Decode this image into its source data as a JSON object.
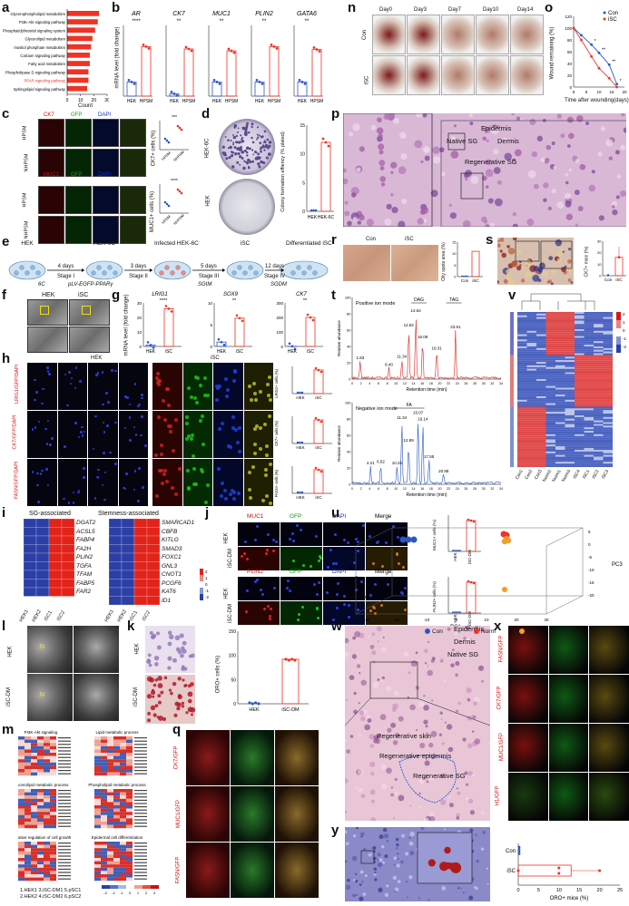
{
  "colors": {
    "red": "#ee3324",
    "blue": "#2f56c4",
    "orange": "#f39c2b",
    "bar": "#ee3324"
  },
  "panels": {
    "a": {
      "label": "a",
      "xlabel": "Count",
      "ticks": [
        "0",
        "10",
        "20",
        "30"
      ],
      "chart_data": {
        "type": "bar",
        "orientation": "horizontal",
        "categories": [
          "Glycerophospholipid metabolism",
          "PI3K-Akt signaling pathway",
          "Phosphatidylinositol signaling system",
          "Glycerolipid metabolism",
          "Inositol phosphate metabolism",
          "Calcium signaling pathway",
          "Fatty acid metabolism",
          "Phospholipase D signaling pathway",
          "PPAR signaling pathway",
          "Sphingolipid signaling pathway"
        ],
        "values": [
          24,
          23,
          21,
          19,
          18,
          17,
          17,
          16,
          16,
          15
        ],
        "xlim": [
          0,
          30
        ],
        "xlabel": "Count",
        "highlight": "PPAR signaling pathway"
      }
    },
    "b": {
      "label": "b",
      "ylabel": "mRNA level (fold change)",
      "genes": [
        "AR",
        "CK7",
        "MUC1",
        "PLIN2",
        "GATA6"
      ],
      "groups": [
        "HEK",
        "HPSM"
      ],
      "sig": [
        "****",
        "**",
        "**",
        "**",
        "**"
      ],
      "chart_data": {
        "type": "bar",
        "series": [
          {
            "name": "HEK",
            "values": [
              1,
              1,
              1,
              1,
              1
            ]
          },
          {
            "name": "HPSM",
            "values": [
              3.5,
              20,
              3.2,
              3.5,
              3.3
            ]
          }
        ]
      }
    },
    "c": {
      "label": "c",
      "rows": [
        "HPSM",
        "NHPSM",
        "HPSM",
        "NHPSM"
      ],
      "cols_top": [
        "CK7",
        "GFP",
        "DAPI"
      ],
      "cols_bottom": [
        "MUC1",
        "GFP",
        "DAPI"
      ],
      "ylabel_top": "CK7+ cells (%)",
      "ylabel_bottom": "MUC1+ cells (%)",
      "sig_top": "***",
      "sig_bottom": "****",
      "groups": [
        "HPSM",
        "NHPSM"
      ]
    },
    "d": {
      "label": "d",
      "dish_labels": [
        "HEK-6C",
        "HEK"
      ],
      "ylabel": "Colony formation effiency (% plated)",
      "groups": [
        "HEK",
        "HEK-6C"
      ],
      "ticks": [
        "0",
        "5",
        "10",
        "15"
      ],
      "chart_data": {
        "type": "bar",
        "categories": [
          "HEK",
          "HEK-6C"
        ],
        "values": [
          0,
          12
        ],
        "ylim": [
          0,
          15
        ]
      }
    },
    "e": {
      "label": "e",
      "stages": [
        "HEK",
        "HEK-6C",
        "Infected HEK-6C",
        "iSC",
        "Differentiated iSC"
      ],
      "durations": [
        "4 days",
        "3 days",
        "5 days",
        "12 days"
      ],
      "stage_names": [
        "Stage I",
        "Stage II",
        "Stage III",
        "Stage IV"
      ],
      "media": [
        "6C",
        "pLV-EGFP-PPARγ",
        "SGIM",
        "SGDM"
      ]
    },
    "f": {
      "label": "f",
      "titles": [
        "HEK",
        "iSC"
      ]
    },
    "g": {
      "label": "g",
      "genes": [
        "LRIG1",
        "SOX9",
        "CK7"
      ],
      "sig": [
        "****",
        "**",
        "**"
      ],
      "ylabel": "mRNA level (fold change)",
      "groups": [
        "HEK",
        "iSC"
      ],
      "ticks": [
        [
          "0",
          "10",
          "20",
          "30"
        ],
        [
          "0",
          "5",
          "10"
        ],
        [
          "0",
          "100",
          "200",
          "300"
        ]
      ],
      "chart_data": {
        "type": "bar",
        "series": [
          {
            "name": "HEK",
            "values": [
              1,
              1,
              1
            ]
          },
          {
            "name": "iSC",
            "values": [
              26,
              6.5,
              200
            ]
          }
        ]
      }
    },
    "h": {
      "label": "h",
      "titles": [
        "HEK",
        "iSC"
      ],
      "row_labels": [
        "LRIG1/GFP/DAPI",
        "CK7/GFP/DAPI",
        "FASN/GFP/DAPI"
      ],
      "ylabels": [
        "LRIG1+ cells (%)",
        "CK7+ cells (%)",
        "FASN+ cells (%)"
      ],
      "groups": [
        "HEK",
        "iSC"
      ]
    },
    "i": {
      "label": "i",
      "headers": [
        "SG-associated",
        "Stemness-associated"
      ],
      "genes_left": [
        "DGAT2",
        "ACSL5",
        "FABP4",
        "FA2H",
        "PLIN2",
        "TGFA",
        "TFAM",
        "FABP5",
        "FAR2"
      ],
      "genes_right": [
        "SMARCAD1",
        "CBFB",
        "KITLG",
        "SMAD3",
        "FOXC1",
        "GNL3",
        "CNOT1",
        "PCGF6",
        "KAT6",
        "ID1"
      ],
      "cols": [
        "HEK1",
        "HEK2",
        "iSC1",
        "iSC2"
      ],
      "scale": [
        "2",
        "1",
        "0",
        "-1",
        "-2"
      ]
    },
    "j": {
      "label": "j",
      "cols_top": [
        "MUC1",
        "GFP",
        "DAPI",
        "Merge"
      ],
      "cols_bottom": [
        "PLIN2",
        "GFP",
        "DAPI",
        "Merge"
      ],
      "rows": [
        "HEK",
        "iSC-DM"
      ],
      "ylabel_top": "MUC1+ cells (%)",
      "ylabel_bottom": "PLIN2+ cells (%)",
      "groups": [
        "HEK",
        "iSC-DM"
      ]
    },
    "k": {
      "label": "k",
      "rows": [
        "HEK",
        "iSC-DM"
      ],
      "ylabel": "ORO+ cells (%)",
      "groups": [
        "HEK",
        "iSC-DM"
      ],
      "ticks": [
        "0",
        "50",
        "100",
        "150"
      ],
      "chart_data": {
        "type": "scatter",
        "categories": [
          "HEK",
          "iSC-DM"
        ],
        "values": [
          2,
          92
        ],
        "ylim": [
          0,
          150
        ]
      }
    },
    "l": {
      "label": "l",
      "rows": [
        "HEK",
        "iSC-DM"
      ],
      "marks": [
        "N",
        "N"
      ]
    },
    "m": {
      "label": "m",
      "titles": [
        "PI3K-Akt signaling",
        "Lipid metabolic process",
        "Glycerolipid metabolic process",
        "Phospholipid metabolic process",
        "Negative regulation of cell growth",
        "Epidermal cell differentiation"
      ],
      "footer": [
        "1.HEK1 3.iSC-DM1 5.pSC1",
        "2.HEK2 4.iSC-DM2 6.pSC2"
      ],
      "scale": [
        "-3",
        "-2",
        "-1",
        "0",
        "1",
        "2",
        "3"
      ]
    },
    "n": {
      "label": "n",
      "days": [
        "Day0",
        "Day3",
        "Day7",
        "Day10",
        "Day14"
      ],
      "rows": [
        "Con",
        "iSC"
      ]
    },
    "o": {
      "label": "o",
      "ylabel": "Wound remaining (%)",
      "xlabel": "Time after wounding(days)",
      "legend": [
        "Con",
        "iSC"
      ],
      "yticks": [
        "0",
        "20",
        "40",
        "60",
        "80",
        "100",
        "120"
      ],
      "xticks": [
        "0",
        "5",
        "10",
        "15",
        "20"
      ],
      "sig": [
        "*",
        "**",
        "**",
        "*"
      ],
      "chart_data": {
        "type": "line",
        "x": [
          0,
          3,
          7,
          10,
          14,
          17
        ],
        "series": [
          {
            "name": "Con",
            "values": [
              100,
              88,
              72,
              58,
              38,
              5
            ]
          },
          {
            "name": "iSC",
            "values": [
              100,
              80,
              52,
              32,
              15,
              0
            ]
          }
        ],
        "xlim": [
          0,
          20
        ],
        "ylim": [
          0,
          120
        ]
      }
    },
    "p": {
      "label": "p",
      "annotations": [
        "Epidermis",
        "Native SG",
        "Dermis",
        "Regenerative SG"
      ]
    },
    "q": {
      "label": "q",
      "rows": [
        "CK7/GFP",
        "MUC1/GFP",
        "FASN/GFP"
      ]
    },
    "r": {
      "label": "r",
      "titles": [
        "Con",
        "iSC"
      ],
      "ylabel": "Oily spots area (%)",
      "groups": [
        "Con",
        "iSC"
      ],
      "ticks": [
        "0",
        "5",
        "10",
        "15"
      ],
      "chart_data": {
        "type": "bar",
        "categories": [
          "Con",
          "iSC"
        ],
        "values": [
          0,
          11
        ],
        "ylim": [
          0,
          15
        ]
      }
    },
    "s": {
      "label": "s",
      "ylabel": "CK7+ mice (%)",
      "groups": [
        "Con",
        "iSC"
      ],
      "ticks": [
        "0",
        "10",
        "20",
        "30"
      ],
      "chart_data": {
        "type": "bar",
        "categories": [
          "Con",
          "iSC"
        ],
        "values": [
          0,
          16
        ],
        "ylim": [
          0,
          30
        ]
      }
    },
    "t": {
      "label": "t",
      "pos_mode": "Positive ion mode",
      "neg_mode": "Negative ion mode",
      "ylabel": "Relative abundance",
      "xlabel": "Retention time (min)",
      "peaks_pos": [
        "1.83",
        "8.40",
        "11.34",
        "12.92",
        "14.54",
        "16.09",
        "19.31",
        "23.61"
      ],
      "lipids_pos": [
        "DAG",
        "TAG"
      ],
      "peaks_neg": [
        "4.21",
        "6.52",
        "10.25",
        "11.34",
        "12.89",
        "15.07",
        "16.14",
        "17.55",
        "20.88"
      ],
      "lipids_neg": [
        "FA"
      ],
      "xticks": [
        "0",
        "2",
        "4",
        "6",
        "8",
        "10",
        "12",
        "14",
        "16",
        "18",
        "20",
        "22",
        "24",
        "26",
        "28",
        "30",
        "32",
        "34"
      ],
      "yticks": [
        "0",
        "20",
        "40",
        "60",
        "80",
        "100"
      ]
    },
    "u": {
      "label": "u",
      "axes": [
        "PC1",
        "PC2",
        "PC3"
      ],
      "legend": [
        "Con",
        "Norm",
        "iSC"
      ],
      "pc2_ticks": [
        "20",
        "10",
        "0",
        "-10",
        "-20"
      ],
      "pc1_ticks": [
        "-30",
        "-20",
        "-10",
        "0",
        "10",
        "20",
        "30"
      ],
      "pc3_ticks": [
        "-20",
        "-15",
        "-10",
        "-5",
        "0",
        "5"
      ]
    },
    "v": {
      "label": "v",
      "cols": [
        "Con1",
        "Con2",
        "Con3",
        "Norm2",
        "Norm1",
        "Norm3",
        "iSC4",
        "iSC1",
        "iSC2",
        "iSC3"
      ],
      "scale": [
        "2",
        "1",
        "0",
        "-1",
        "-2"
      ]
    },
    "w": {
      "label": "w",
      "annotations": [
        "Epidermis",
        "Dermis",
        "Native SG",
        "Regenerative skin",
        "Regenerative epidermis",
        "Regenerative SG"
      ]
    },
    "x": {
      "label": "x",
      "rows": [
        "FASN/GFP",
        "CK7/GFP",
        "MUC1/GFP",
        "H1/GFP"
      ]
    },
    "y": {
      "label": "y",
      "groups": [
        "Con",
        "iSC"
      ],
      "xlabel": "ORO+ mice (%)",
      "ticks": [
        "0",
        "5",
        "10",
        "15",
        "20",
        "25"
      ],
      "chart_data": {
        "type": "bar",
        "orientation": "horizontal",
        "categories": [
          "Con",
          "iSC"
        ],
        "values": [
          0,
          13
        ],
        "xlim": [
          0,
          25
        ]
      }
    }
  }
}
